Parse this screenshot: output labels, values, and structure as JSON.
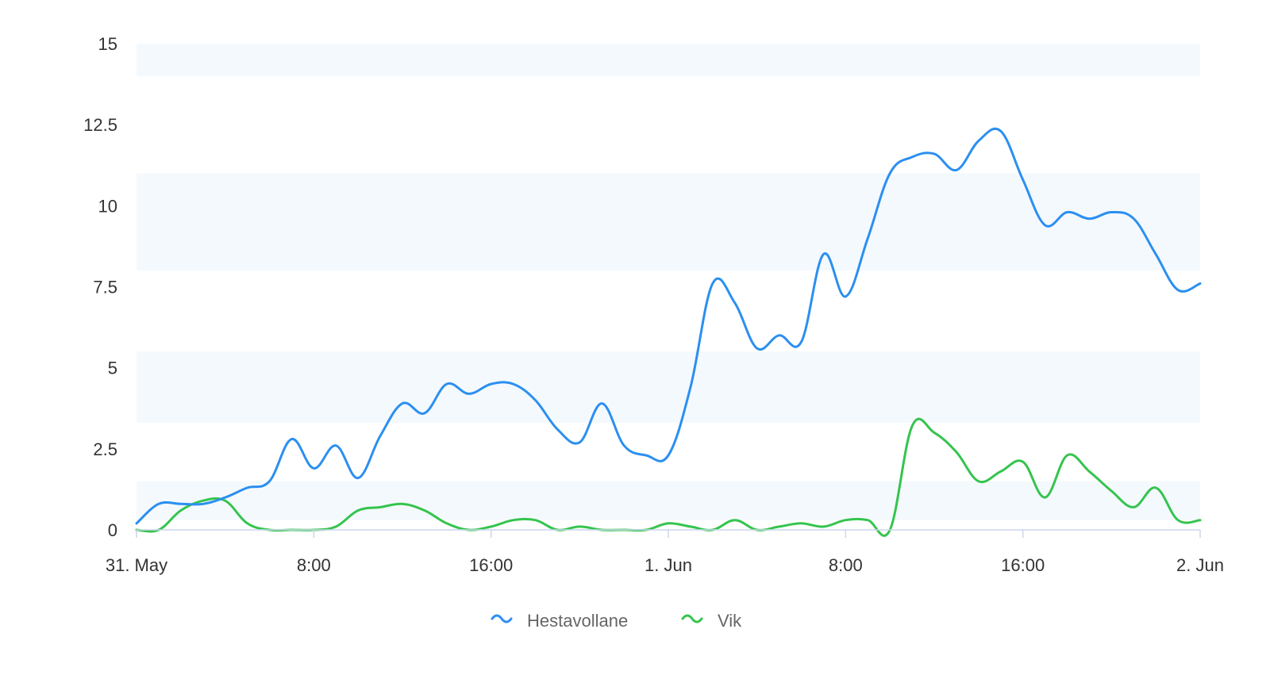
{
  "chart_data": {
    "type": "line",
    "title": "",
    "xlabel": "",
    "ylabel": "",
    "ylim": [
      0,
      15
    ],
    "y_ticks": [
      "0",
      "2.5",
      "5",
      "7.5",
      "10",
      "12.5",
      "15"
    ],
    "x_ticks": [
      "31. May",
      "8:00",
      "16:00",
      "1. Jun",
      "8:00",
      "16:00",
      "2. Jun"
    ],
    "x_range": [
      "31. May 00:00",
      "2. Jun 00:00"
    ],
    "x_unit": "hour",
    "grid": false,
    "plot_bands_y": [
      [
        0.3,
        1.5
      ],
      [
        3.3,
        5.5
      ],
      [
        8,
        11
      ],
      [
        14,
        15
      ]
    ],
    "legend_position": "bottom-center",
    "series": [
      {
        "name": "Hestavollane",
        "color": "#2b8ff0",
        "x": [
          0,
          1,
          2,
          3,
          4,
          5,
          6,
          7,
          8,
          9,
          10,
          11,
          12,
          13,
          14,
          15,
          16,
          17,
          18,
          19,
          20,
          21,
          22,
          23,
          24,
          25,
          26,
          27,
          28,
          29,
          30,
          31,
          32,
          33,
          34,
          35,
          36,
          37,
          38,
          39,
          40,
          41,
          42,
          43,
          44,
          45,
          46,
          47,
          48
        ],
        "y": [
          0.2,
          0.8,
          0.8,
          0.8,
          1.0,
          1.3,
          1.5,
          2.8,
          1.9,
          2.6,
          1.6,
          2.9,
          3.9,
          3.6,
          4.5,
          4.2,
          4.5,
          4.5,
          4.0,
          3.1,
          2.7,
          3.9,
          2.6,
          2.3,
          2.3,
          4.4,
          7.6,
          7.0,
          5.6,
          6.0,
          5.8,
          8.5,
          7.2,
          9.0,
          11.0,
          11.5,
          11.6,
          11.1,
          12.0,
          12.3,
          10.8,
          9.4,
          9.8,
          9.6,
          9.8,
          9.6,
          8.5,
          7.4,
          7.6
        ]
      },
      {
        "name": "Vik",
        "color": "#35c44e",
        "x": [
          0,
          1,
          2,
          3,
          4,
          5,
          6,
          7,
          8,
          9,
          10,
          11,
          12,
          13,
          14,
          15,
          16,
          17,
          18,
          19,
          20,
          21,
          22,
          23,
          24,
          25,
          26,
          27,
          28,
          29,
          30,
          31,
          32,
          33,
          34,
          35,
          36,
          37,
          38,
          39,
          40,
          41,
          42,
          43,
          44,
          45,
          46,
          47,
          48
        ],
        "y": [
          0,
          0,
          0.6,
          0.9,
          0.9,
          0.2,
          0,
          0,
          0,
          0.1,
          0.6,
          0.7,
          0.8,
          0.6,
          0.2,
          0,
          0.1,
          0.3,
          0.3,
          0,
          0.1,
          0,
          0,
          0,
          0.2,
          0.1,
          0,
          0.3,
          0,
          0.1,
          0.2,
          0.1,
          0.3,
          0.3,
          0,
          3.2,
          3.0,
          2.4,
          1.5,
          1.8,
          2.1,
          1.0,
          2.3,
          1.8,
          1.2,
          0.7,
          1.3,
          0.3,
          0.3
        ]
      }
    ]
  }
}
